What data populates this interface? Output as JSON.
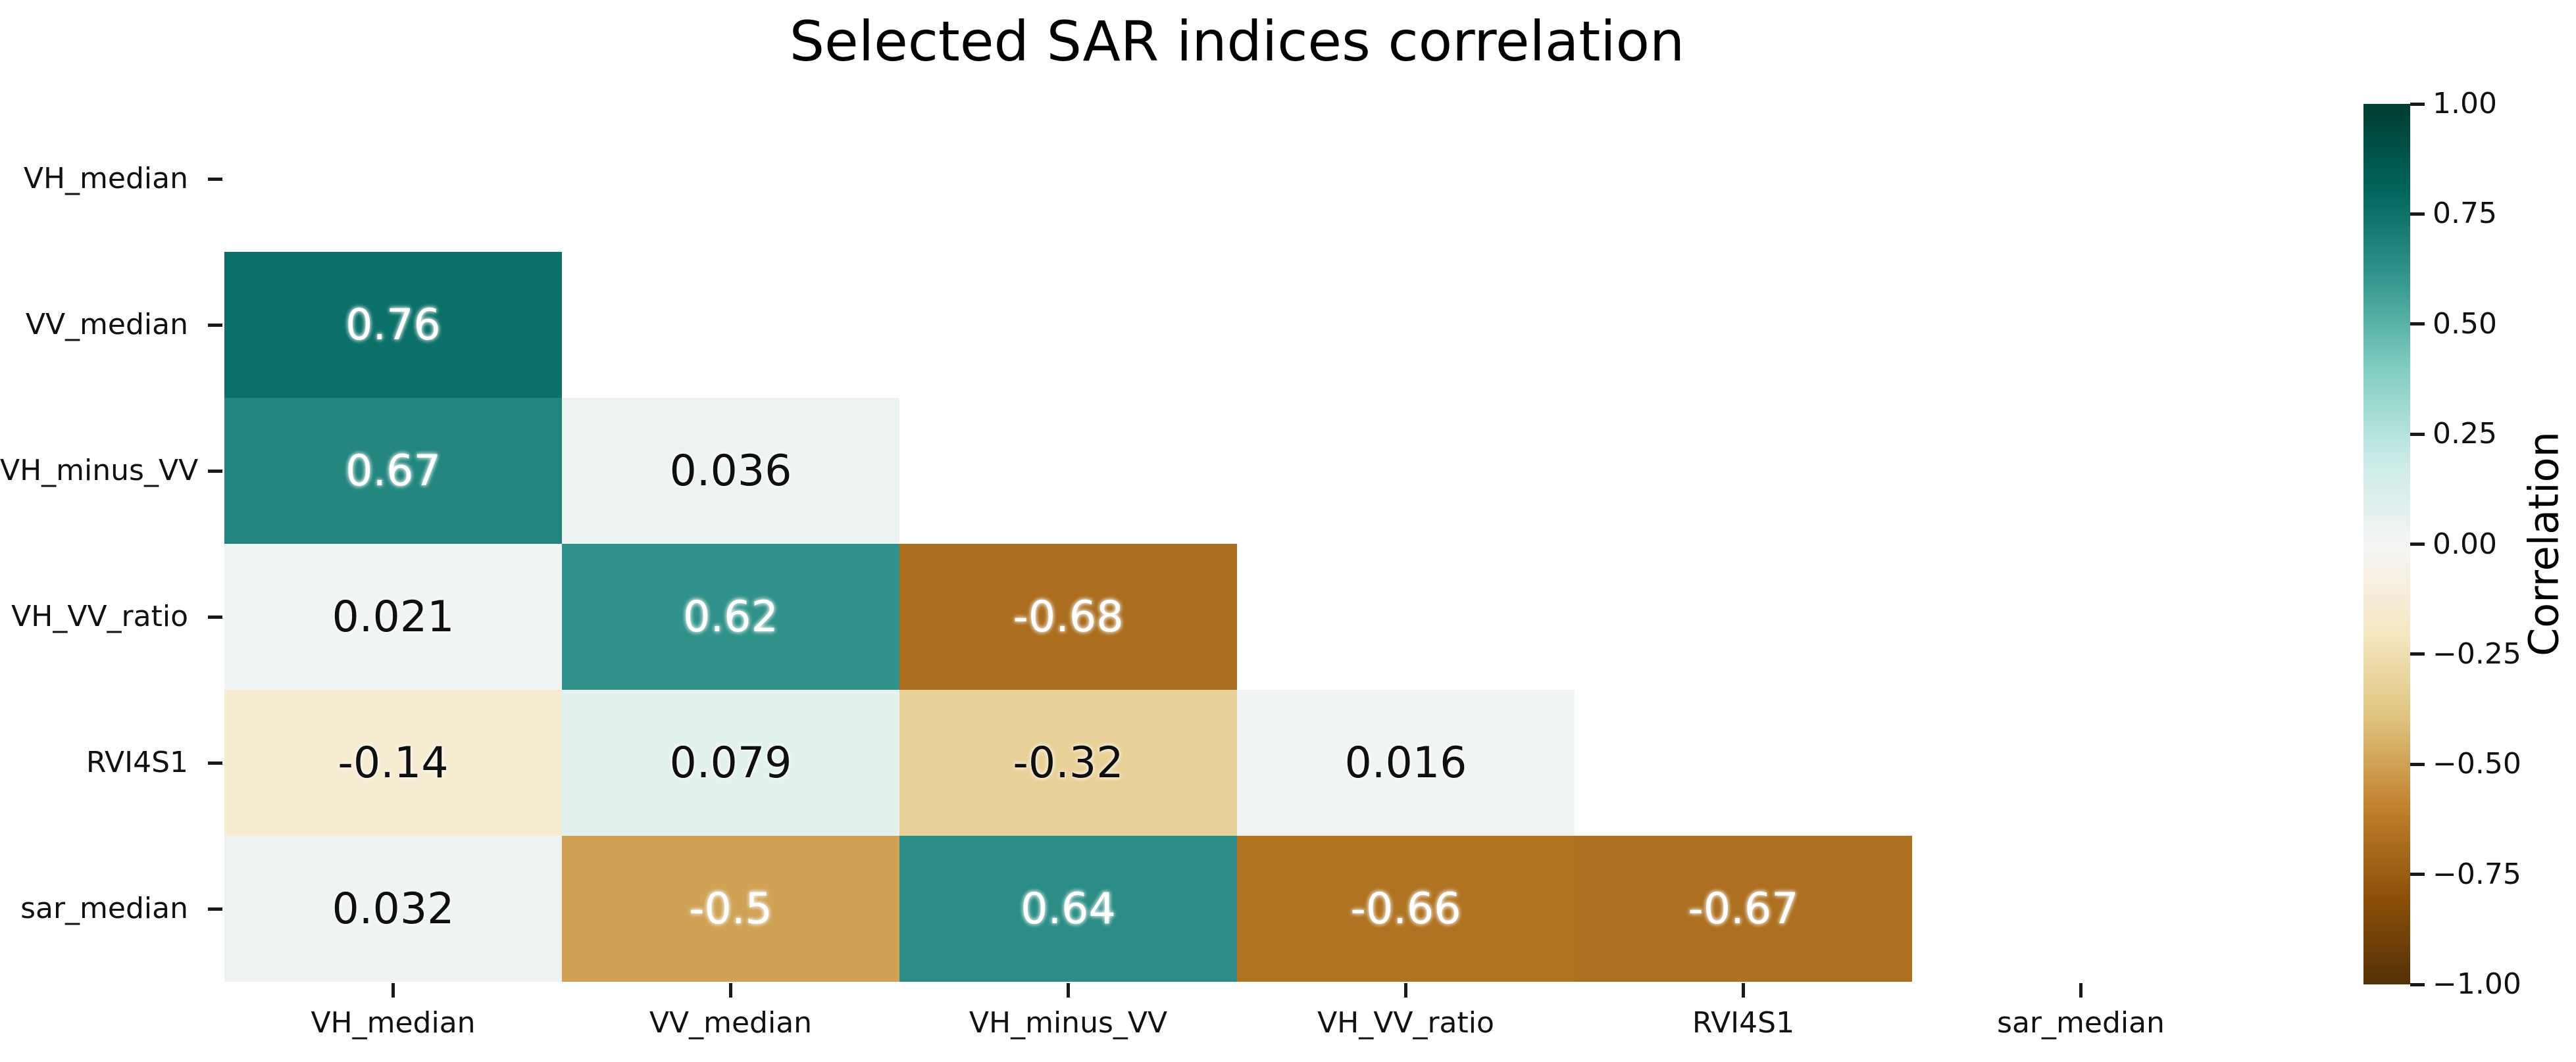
{
  "title": "Selected SAR indices correlation",
  "chart_data": {
    "type": "heatmap",
    "title": "Selected SAR indices correlation",
    "variables": [
      "VH_median",
      "VV_median",
      "VH_minus_VV",
      "VH_VV_ratio",
      "RVI4S1",
      "sar_median"
    ],
    "x_tick_labels": [
      "VH_median",
      "VV_median",
      "VH_minus_VV",
      "VH_VV_ratio",
      "RVI4S1",
      "sar_median"
    ],
    "y_tick_labels": [
      "VH_median",
      "VV_median",
      "VH_minus_VV",
      "VH_VV_ratio",
      "RVI4S1",
      "sar_median"
    ],
    "mask": "upper triangle and diagonal hidden",
    "value_range": [
      -1,
      1
    ],
    "colormap": "BrBG",
    "cells": [
      {
        "row": 1,
        "col": 0,
        "value": 0.76,
        "label": "0.76"
      },
      {
        "row": 2,
        "col": 0,
        "value": 0.67,
        "label": "0.67"
      },
      {
        "row": 2,
        "col": 1,
        "value": 0.036,
        "label": "0.036"
      },
      {
        "row": 3,
        "col": 0,
        "value": 0.021,
        "label": "0.021"
      },
      {
        "row": 3,
        "col": 1,
        "value": 0.62,
        "label": "0.62"
      },
      {
        "row": 3,
        "col": 2,
        "value": -0.68,
        "label": "-0.68"
      },
      {
        "row": 4,
        "col": 0,
        "value": -0.14,
        "label": "-0.14"
      },
      {
        "row": 4,
        "col": 1,
        "value": 0.079,
        "label": "0.079"
      },
      {
        "row": 4,
        "col": 2,
        "value": -0.32,
        "label": "-0.32"
      },
      {
        "row": 4,
        "col": 3,
        "value": 0.016,
        "label": "0.016"
      },
      {
        "row": 5,
        "col": 0,
        "value": 0.032,
        "label": "0.032"
      },
      {
        "row": 5,
        "col": 1,
        "value": -0.5,
        "label": "-0.5"
      },
      {
        "row": 5,
        "col": 2,
        "value": 0.64,
        "label": "0.64"
      },
      {
        "row": 5,
        "col": 3,
        "value": -0.66,
        "label": "-0.66"
      },
      {
        "row": 5,
        "col": 4,
        "value": -0.67,
        "label": "-0.67"
      }
    ],
    "colorbar": {
      "label": "Correlation",
      "ticks": [
        {
          "value": 1.0,
          "label": "1.00"
        },
        {
          "value": 0.75,
          "label": "0.75"
        },
        {
          "value": 0.5,
          "label": "0.50"
        },
        {
          "value": 0.25,
          "label": "0.25"
        },
        {
          "value": 0.0,
          "label": "0.00"
        },
        {
          "value": -0.25,
          "label": "−0.25"
        },
        {
          "value": -0.5,
          "label": "−0.50"
        },
        {
          "value": -0.75,
          "label": "−0.75"
        },
        {
          "value": -1.0,
          "label": "−1.00"
        }
      ]
    }
  },
  "colors": {
    "background": "#ffffff",
    "title_text": "#000000",
    "tick_text": "#111111",
    "annotation_dark_text": "#0f0f0f",
    "annotation_light_text": "#ffffff",
    "colormap_anchors": [
      "#543005",
      "#8c510a",
      "#bf812d",
      "#dfc27d",
      "#f6e8c3",
      "#f5f5f5",
      "#c7eae5",
      "#80cdc1",
      "#35978f",
      "#01665e",
      "#003c30"
    ]
  }
}
